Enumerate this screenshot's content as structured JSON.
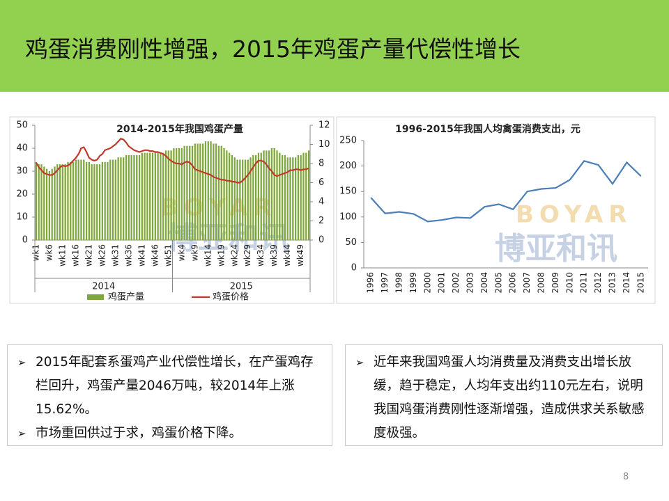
{
  "slide": {
    "title": "鸡蛋消费刚性增强，2015年鸡蛋产量代偿性增长",
    "page_number": "8",
    "watermark": {
      "latin": "BOYAR",
      "chinese": "博亚和讯"
    },
    "left_box": {
      "bullets": [
        "2015年配套系蛋鸡产业代偿性增长，在产蛋鸡存栏回升，鸡蛋产量2046万吨，较2014年上涨15.62%。",
        "市场重回供过于求，鸡蛋价格下降。"
      ]
    },
    "right_box": {
      "bullets": [
        "近年来我国鸡蛋人均消费量及消费支出增长放缓，趋于稳定，人均年支出约110元左右，说明我国鸡蛋消费刚性逐渐增强，造成供求关系敏感度极强。"
      ]
    }
  },
  "chart_data": [
    {
      "type": "combo",
      "title": "2014-2015年我国鸡蛋产量",
      "categories": [
        "wk1",
        null,
        null,
        null,
        null,
        "wk6",
        null,
        null,
        null,
        null,
        "wk11",
        null,
        null,
        null,
        null,
        "wk16",
        null,
        null,
        null,
        null,
        "wk21",
        null,
        null,
        null,
        null,
        "wk26",
        null,
        null,
        null,
        null,
        "wk31",
        null,
        null,
        null,
        null,
        "wk36",
        null,
        null,
        null,
        null,
        "wk41",
        null,
        null,
        null,
        null,
        "wk46",
        null,
        null,
        null,
        null,
        "wk51",
        null,
        null,
        null,
        null,
        "wk4",
        null,
        null,
        null,
        null,
        "wk9",
        null,
        null,
        null,
        null,
        "wk14",
        null,
        null,
        null,
        null,
        "wk19",
        null,
        null,
        null,
        null,
        "wk24",
        null,
        null,
        null,
        null,
        "wk29",
        null,
        null,
        null,
        null,
        "wk34",
        null,
        null,
        null,
        null,
        "wk39",
        null,
        null,
        null,
        null,
        "wk44",
        null,
        null,
        null,
        null,
        "wk49",
        null,
        null,
        null
      ],
      "group_labels": [
        "2014",
        "2015"
      ],
      "series": [
        {
          "name": "鸡蛋产量",
          "type": "bar",
          "color": "#7fa83c",
          "values": [
            34,
            33,
            33,
            32,
            31,
            30,
            31,
            32,
            33,
            33,
            33,
            33,
            34,
            34,
            34,
            35,
            35,
            35,
            35,
            34,
            34,
            33,
            33,
            33,
            33,
            34,
            34,
            34,
            35,
            35,
            35,
            36,
            36,
            36,
            37,
            37,
            37,
            37,
            37,
            37,
            38,
            38,
            38,
            38,
            38,
            38,
            38,
            38,
            38,
            39,
            39,
            39,
            40,
            40,
            40,
            40,
            41,
            41,
            41,
            41,
            42,
            42,
            42,
            42,
            43,
            43,
            43,
            42,
            42,
            41,
            41,
            40,
            39,
            38,
            37,
            36,
            35,
            35,
            35,
            35,
            35,
            36,
            37,
            37,
            38,
            38,
            39,
            39,
            39,
            40,
            40,
            39,
            38,
            37,
            37,
            36,
            36,
            36,
            36,
            37,
            37,
            38,
            38,
            39
          ]
        },
        {
          "name": "鸡蛋价格",
          "type": "line",
          "axis": "y2",
          "color": "#c0392b",
          "values": [
            8.1,
            7.6,
            7.3,
            7.0,
            6.9,
            6.8,
            6.8,
            7.0,
            7.3,
            7.6,
            7.8,
            7.7,
            7.8,
            8.0,
            8.3,
            8.6,
            9.0,
            9.6,
            9.7,
            9.2,
            8.6,
            8.4,
            8.3,
            8.4,
            8.8,
            9.0,
            9.4,
            9.5,
            9.6,
            9.8,
            10.0,
            10.3,
            10.6,
            10.5,
            10.2,
            9.8,
            9.6,
            9.4,
            9.3,
            9.2,
            9.3,
            9.4,
            9.4,
            9.3,
            9.3,
            9.2,
            9.2,
            9.1,
            9.0,
            8.8,
            8.5,
            8.3,
            8.1,
            8.0,
            8.0,
            7.9,
            8.1,
            8.2,
            8.1,
            7.8,
            7.4,
            7.3,
            7.2,
            7.1,
            7.0,
            6.9,
            6.8,
            6.6,
            6.5,
            6.4,
            6.3,
            6.3,
            6.2,
            6.2,
            6.1,
            6.1,
            6.0,
            6.0,
            6.2,
            6.5,
            6.8,
            7.2,
            7.6,
            8.0,
            8.3,
            8.3,
            8.2,
            7.9,
            7.5,
            7.2,
            6.8,
            6.7,
            6.8,
            6.9,
            7.0,
            7.1,
            7.3,
            7.3,
            7.4,
            7.4,
            7.3,
            7.4,
            7.4,
            7.5
          ]
        }
      ],
      "ylim": [
        0,
        50
      ],
      "yticks": [
        0,
        10,
        20,
        30,
        40,
        50
      ],
      "y2lim": [
        0,
        12
      ],
      "y2ticks": [
        0,
        2,
        4,
        6,
        8,
        10,
        12
      ],
      "legend": "bottom"
    },
    {
      "type": "line",
      "title": "1996-2015年我国人均禽蛋消费支出，元",
      "categories": [
        "1996",
        "1997",
        "1998",
        "1999",
        "2000",
        "2001",
        "2002",
        "2003",
        "2004",
        "2005",
        "2006",
        "2007",
        "2008",
        "2009",
        "2010",
        "2011",
        "2012",
        "2013",
        "2014",
        "2015"
      ],
      "series": [
        {
          "name": "人均禽蛋消费支出",
          "color": "#4a7ebb",
          "values": [
            138,
            107,
            110,
            106,
            91,
            94,
            99,
            98,
            120,
            125,
            115,
            150,
            155,
            157,
            173,
            210,
            202,
            165,
            207,
            180
          ]
        }
      ],
      "ylim": [
        0,
        250
      ],
      "yticks": [
        0,
        50,
        100,
        150,
        200,
        250
      ]
    }
  ]
}
